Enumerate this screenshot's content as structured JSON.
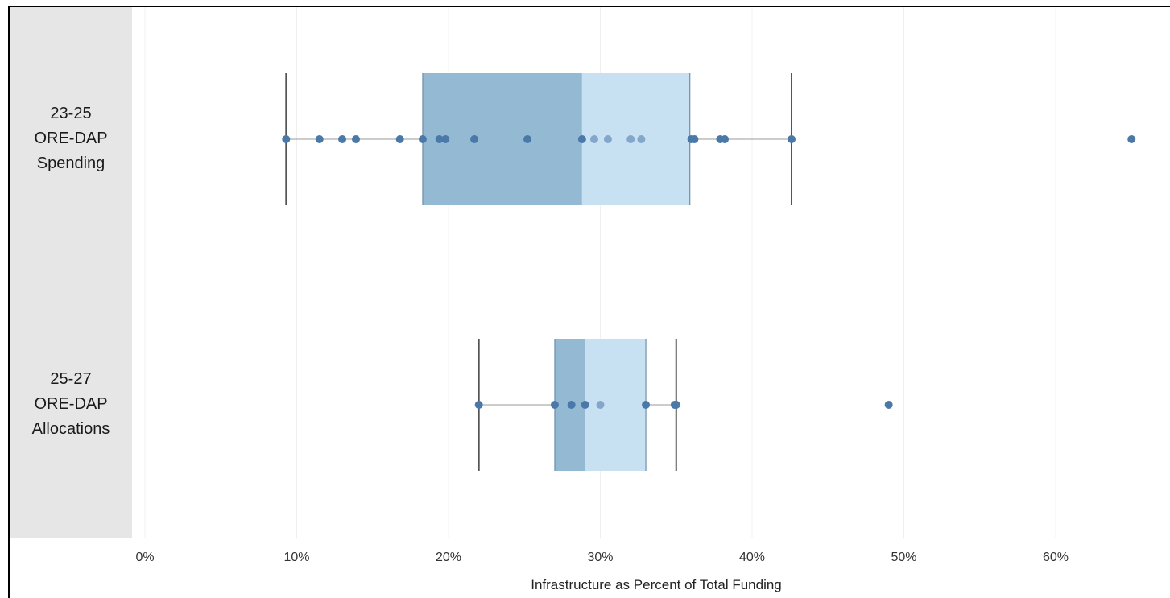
{
  "chart_data": {
    "type": "box",
    "xlabel": "Infrastructure as Percent of Total Funding",
    "x_ticks": [
      "0%",
      "10%",
      "20%",
      "30%",
      "40%",
      "50%",
      "60%"
    ],
    "xlim": [
      0,
      68
    ],
    "grid": true,
    "colors": {
      "lower_box": "#93b9d3",
      "upper_box": "#c7e1f3",
      "point": "#4a78a8",
      "whisker": "#555555"
    },
    "series": [
      {
        "name": "23-25 ORE-DAP Spending",
        "label_lines": [
          "23-25",
          "ORE-DAP",
          "Spending"
        ],
        "whisker_low": 9.3,
        "q1": 18.3,
        "median": 28.8,
        "q3": 35.9,
        "whisker_high": 42.6,
        "points": [
          9.3,
          11.5,
          13.0,
          13.9,
          16.8,
          18.3,
          19.4,
          19.8,
          21.7,
          25.2,
          28.8,
          29.6,
          30.5,
          32.0,
          32.7,
          36.0,
          36.2,
          37.9,
          38.2,
          42.6,
          65.0
        ]
      },
      {
        "name": "25-27 ORE-DAP Allocations",
        "label_lines": [
          "25-27",
          "ORE-DAP",
          "Allocations"
        ],
        "whisker_low": 22.0,
        "q1": 27.0,
        "median": 29.0,
        "q3": 33.0,
        "whisker_high": 35.0,
        "points": [
          22.0,
          27.0,
          28.1,
          29.0,
          30.0,
          33.0,
          34.9,
          35.0,
          49.0
        ]
      }
    ]
  }
}
